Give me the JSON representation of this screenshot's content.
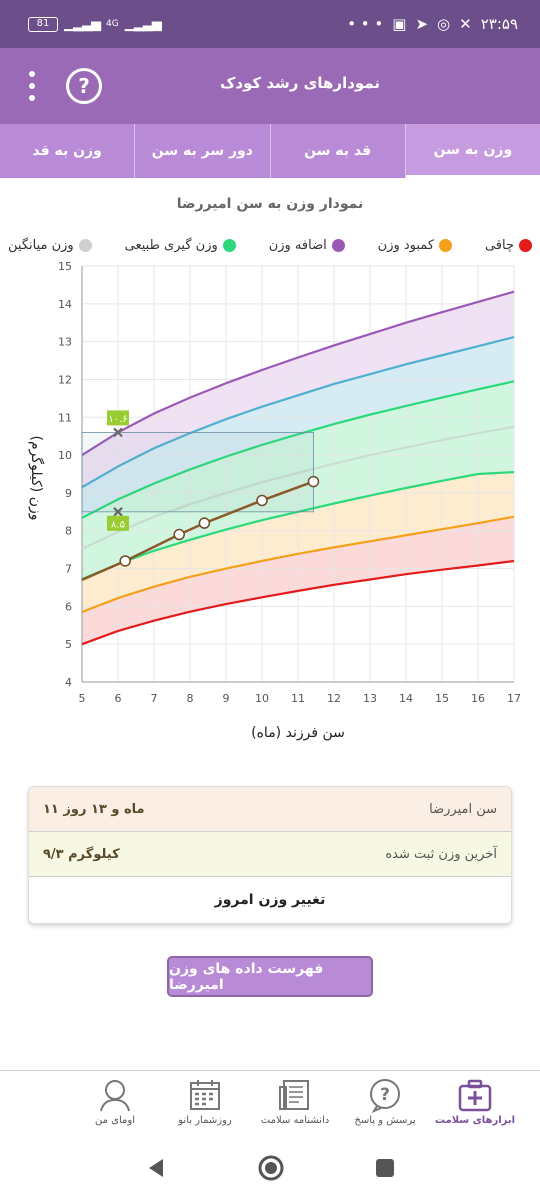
{
  "status_bar": {
    "battery": "81",
    "network": "4G",
    "time": "۲۳:۵۹"
  },
  "app_bar": {
    "title": "نمودارهای رشد کودک",
    "help_icon": "question-circle-icon",
    "menu_icon": "more-vertical-icon"
  },
  "tabs": [
    {
      "label": "وزن به سن",
      "active": true
    },
    {
      "label": "قد به سن",
      "active": false
    },
    {
      "label": "دور سر به سن",
      "active": false
    },
    {
      "label": "وزن به قد",
      "active": false
    }
  ],
  "chart_title": "نمودار وزن به سن امیررضا",
  "legend": [
    {
      "label": "چاقی",
      "color": "#e31b1b"
    },
    {
      "label": "کمبود وزن",
      "color": "#f5a01a"
    },
    {
      "label": "اضافه وزن",
      "color": "#9b59b6"
    },
    {
      "label": "وزن گیری طبیعی",
      "color": "#2bd97a"
    },
    {
      "label": "وزن میانگین",
      "color": "#d0d0d0"
    }
  ],
  "chart_data": {
    "type": "line",
    "xlabel": "سن فرزند (ماه)",
    "ylabel": "وزن (کیلوگرم)",
    "xlim": [
      5,
      17
    ],
    "ylim": [
      4,
      15
    ],
    "x_ticks": [
      "5",
      "6",
      "7",
      "8",
      "9",
      "10",
      "11",
      "12",
      "13",
      "14",
      "15",
      "16",
      "17"
    ],
    "y_ticks": [
      "4",
      "5",
      "6",
      "7",
      "8",
      "9",
      "10",
      "11",
      "12",
      "13",
      "14",
      "15"
    ],
    "x": [
      5,
      6,
      7,
      8,
      9,
      10,
      11,
      12,
      13,
      14,
      15,
      16,
      17
    ],
    "series": [
      {
        "color": "#e31b1b",
        "values": [
          5.0,
          5.35,
          5.62,
          5.86,
          6.06,
          6.24,
          6.41,
          6.57,
          6.71,
          6.85,
          6.97,
          7.08,
          7.2
        ]
      },
      {
        "color": "#f5a01a",
        "values": [
          5.85,
          6.22,
          6.52,
          6.78,
          7.0,
          7.2,
          7.39,
          7.56,
          7.72,
          7.88,
          8.04,
          8.2,
          8.37
        ]
      },
      {
        "color": "#2bd97a",
        "values": [
          6.72,
          7.12,
          7.47,
          7.76,
          8.03,
          8.28,
          8.5,
          8.72,
          8.93,
          9.13,
          9.32,
          9.5,
          9.55
        ]
      },
      {
        "color": "#c8dcd0",
        "values": [
          7.52,
          7.97,
          8.37,
          8.7,
          9.0,
          9.28,
          9.53,
          9.77,
          10.0,
          10.2,
          10.4,
          10.58,
          10.75
        ]
      },
      {
        "color": "#2bd97a",
        "values": [
          8.34,
          8.83,
          9.25,
          9.62,
          9.96,
          10.27,
          10.55,
          10.82,
          11.07,
          11.3,
          11.52,
          11.74,
          11.95
        ]
      },
      {
        "color": "#4fb0d0",
        "values": [
          9.15,
          9.7,
          10.18,
          10.58,
          10.95,
          11.28,
          11.58,
          11.88,
          12.14,
          12.4,
          12.64,
          12.88,
          13.12
        ]
      },
      {
        "color": "#9b59b6",
        "values": [
          10.0,
          10.6,
          11.1,
          11.52,
          11.9,
          12.25,
          12.58,
          12.9,
          13.2,
          13.5,
          13.78,
          14.05,
          14.32
        ]
      }
    ],
    "child_series": {
      "color": "#8b5a2b",
      "points": [
        [
          5.0,
          6.7
        ],
        [
          6.2,
          7.2
        ],
        [
          7.7,
          7.9
        ],
        [
          8.4,
          8.2
        ],
        [
          10.0,
          8.8
        ],
        [
          11.43,
          9.3
        ]
      ]
    },
    "range_markers": {
      "x": 6.0,
      "upper": 10.6,
      "lower": 8.5,
      "upper_label": "۱۰.۶",
      "lower_label": "۸.۵",
      "box_x_end": 11.43,
      "label_color": "#9acd32"
    },
    "grid": true,
    "legend_position": "top"
  },
  "info": {
    "age_label": "سن امیررضا",
    "age_value": "۱۱ ماه و ۱۳ روز",
    "weight_label": "آخرین وزن ثبت شده",
    "weight_value": "۹/۳ کیلوگرم",
    "action_label": "تغییر وزن امروز"
  },
  "list_button": "فهرست داده های وزن امیررضا",
  "bottom_nav": [
    {
      "label": "ابزارهای سلامت",
      "icon": "medical-kit-icon",
      "active": true
    },
    {
      "label": "پرسش و پاسخ",
      "icon": "question-bubble-icon",
      "active": false
    },
    {
      "label": "دانشنامه سلامت",
      "icon": "document-icon",
      "active": false
    },
    {
      "label": "روزشمار بانو",
      "icon": "calendar-icon",
      "active": false
    },
    {
      "label": "اومای من",
      "icon": "user-avatar-icon",
      "active": false
    }
  ]
}
